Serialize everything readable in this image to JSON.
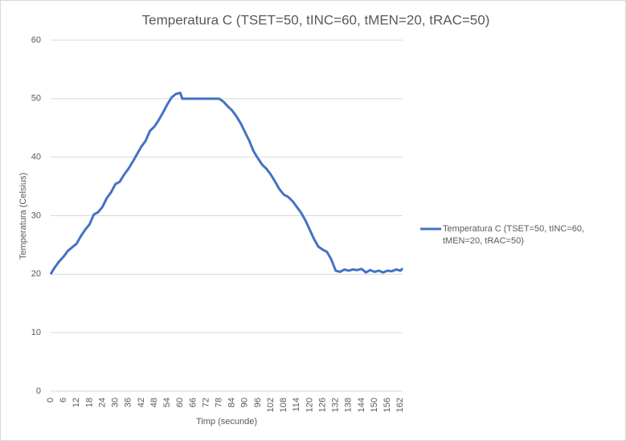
{
  "chart_data": {
    "type": "line",
    "title": "Temperatura C (TSET=50, tINC=60, tMEN=20, tRAC=50)",
    "x_label": "Timp (secunde)",
    "y_label": "Temperatura (Celsius)",
    "x": [
      0,
      2,
      4,
      6,
      8,
      10,
      12,
      14,
      16,
      18,
      20,
      22,
      24,
      26,
      28,
      30,
      32,
      34,
      36,
      38,
      40,
      42,
      44,
      46,
      48,
      50,
      52,
      54,
      56,
      58,
      60,
      61,
      64,
      68,
      72,
      76,
      78,
      80,
      82,
      84,
      86,
      88,
      90,
      92,
      94,
      96,
      98,
      100,
      102,
      104,
      106,
      108,
      110,
      112,
      114,
      116,
      118,
      120,
      122,
      124,
      126,
      128,
      130,
      132,
      134,
      136,
      138,
      140,
      142,
      144,
      146,
      148,
      150,
      152,
      154,
      156,
      158,
      160,
      162,
      163
    ],
    "series": [
      {
        "name": "Temperatura C (TSET=50, tINC=60, tMEN=20, tRAC=50)",
        "color": "#4472c4",
        "values": [
          20,
          21.2,
          22.2,
          23,
          24,
          24.6,
          25.2,
          26.5,
          27.6,
          28.5,
          30.2,
          30.6,
          31.5,
          33,
          34,
          35.4,
          35.8,
          37,
          38,
          39.2,
          40.5,
          41.8,
          42.8,
          44.5,
          45.2,
          46.3,
          47.6,
          49,
          50.2,
          50.8,
          51,
          50,
          50,
          50,
          50,
          50,
          50,
          49.5,
          48.7,
          48,
          47,
          45.8,
          44.3,
          42.8,
          41,
          39.8,
          38.7,
          38,
          37,
          35.8,
          34.5,
          33.6,
          33.2,
          32.5,
          31.5,
          30.5,
          29.2,
          27.6,
          26,
          24.7,
          24.2,
          23.8,
          22.5,
          20.6,
          20.4,
          20.8,
          20.6,
          20.8,
          20.7,
          20.9,
          20.3,
          20.7,
          20.4,
          20.6,
          20.3,
          20.6,
          20.5,
          20.8,
          20.6,
          21
        ]
      }
    ],
    "xlim": [
      0,
      163
    ],
    "xticks": [
      0,
      6,
      12,
      18,
      24,
      30,
      36,
      42,
      48,
      54,
      60,
      66,
      72,
      78,
      84,
      90,
      96,
      102,
      108,
      114,
      120,
      126,
      132,
      138,
      144,
      150,
      156,
      162
    ],
    "ylim": [
      0,
      60
    ],
    "yticks": [
      0,
      10,
      20,
      30,
      40,
      50,
      60
    ],
    "grid": true,
    "legend": "right"
  }
}
